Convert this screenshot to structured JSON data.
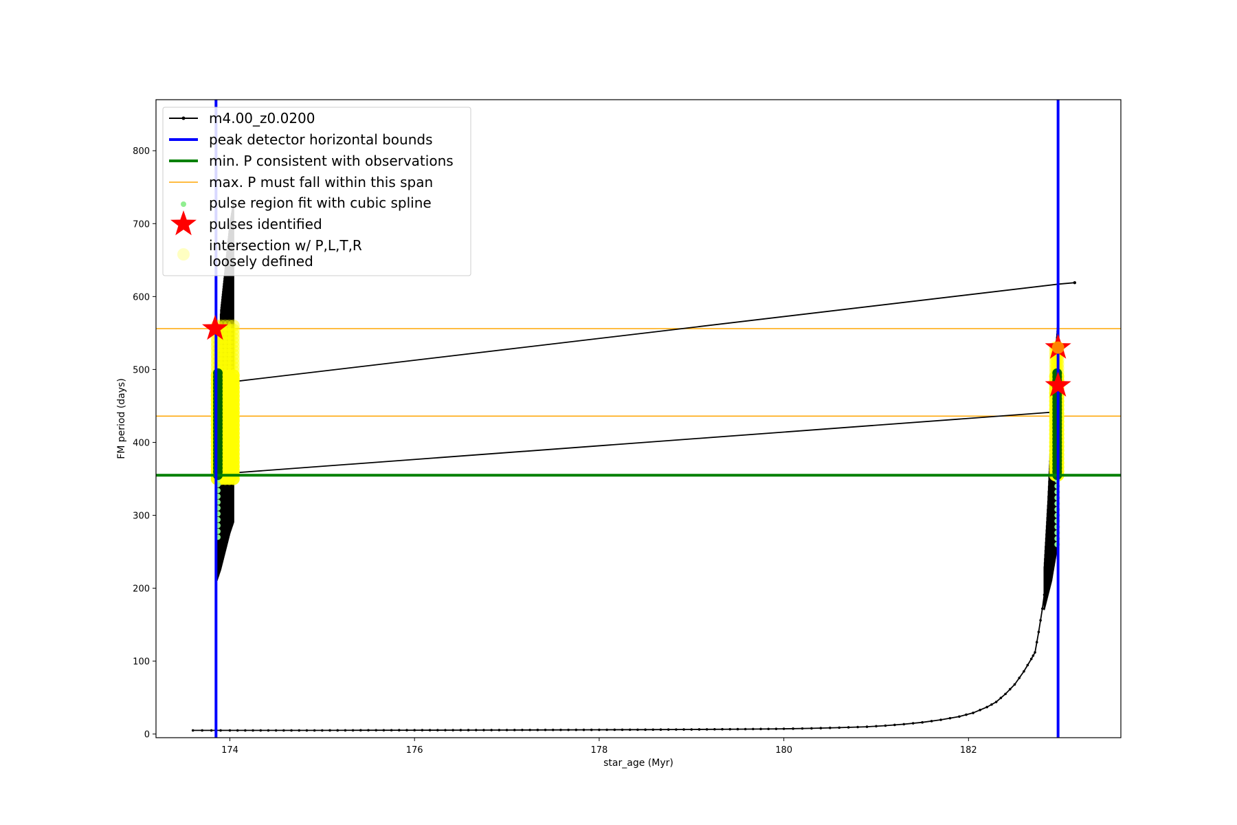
{
  "chart_data": {
    "type": "line",
    "title": "",
    "xlabel": "star_age (Myr)",
    "ylabel": "FM period (days)",
    "xlim": [
      173.2,
      183.65
    ],
    "ylim": [
      -5,
      870
    ],
    "xticks": [
      174,
      176,
      178,
      180,
      182
    ],
    "yticks": [
      0,
      100,
      200,
      300,
      400,
      500,
      600,
      700,
      800
    ],
    "grid": false,
    "legend_position": "upper-left",
    "colors": {
      "track": "#000000",
      "bounds": "#0000ff",
      "min_p": "#008000",
      "max_p": "#ffa500",
      "spline_dark": "#006400",
      "spline_light": "#90ee90",
      "pulse": "#ff0000",
      "intersection": "#ffff00"
    },
    "legend": [
      {
        "label": "m4.00_z0.0200",
        "kind": "line-marker",
        "color": "#000000"
      },
      {
        "label": "peak detector horizontal bounds",
        "kind": "thick-line",
        "color": "#0000ff"
      },
      {
        "label": "min. P consistent with observations",
        "kind": "thick-line",
        "color": "#008000"
      },
      {
        "label": "max. P must fall within this span",
        "kind": "thin-line",
        "color": "#ffa500"
      },
      {
        "label": "pulse region fit with cubic spline",
        "kind": "dot",
        "color": "#90ee90"
      },
      {
        "label": "pulses identified",
        "kind": "star",
        "color": "#ff0000"
      },
      {
        "label": "intersection w/ P,L,T,R\nloosely defined",
        "kind": "big-dot",
        "color": "#ffff99"
      }
    ],
    "vertical_bounds": [
      173.85,
      182.97
    ],
    "min_p_line": 355,
    "max_p_span": [
      436,
      556
    ],
    "track_series": {
      "name": "m4.00_z0.0200",
      "main_branch": [
        [
          173.6,
          5
        ],
        [
          174.0,
          5
        ],
        [
          174.5,
          5
        ],
        [
          175.0,
          5
        ],
        [
          175.5,
          5.2
        ],
        [
          176.0,
          5.3
        ],
        [
          176.5,
          5.4
        ],
        [
          177.0,
          5.5
        ],
        [
          177.5,
          5.7
        ],
        [
          178.0,
          5.8
        ],
        [
          178.5,
          6.0
        ],
        [
          179.0,
          6.3
        ],
        [
          179.5,
          6.7
        ],
        [
          180.0,
          7.2
        ],
        [
          180.3,
          7.8
        ],
        [
          180.6,
          8.8
        ],
        [
          180.9,
          10
        ],
        [
          181.1,
          11.5
        ],
        [
          181.3,
          13.5
        ],
        [
          181.5,
          16
        ],
        [
          181.7,
          19.5
        ],
        [
          181.9,
          24
        ],
        [
          182.05,
          29
        ],
        [
          182.2,
          37
        ],
        [
          182.3,
          44
        ],
        [
          182.4,
          55
        ],
        [
          182.5,
          68
        ],
        [
          182.6,
          86
        ],
        [
          182.68,
          103
        ],
        [
          182.72,
          112
        ],
        [
          182.76,
          140
        ],
        [
          182.8,
          172
        ],
        [
          182.84,
          210
        ],
        [
          182.88,
          260
        ],
        [
          182.9,
          300
        ]
      ],
      "early_spike": {
        "x_range": [
          173.86,
          174.04
        ],
        "lower_edge": [
          [
            173.86,
            210
          ],
          [
            173.9,
            225
          ],
          [
            173.95,
            250
          ],
          [
            174.0,
            275
          ],
          [
            174.04,
            290
          ]
        ],
        "upper_edge": [
          [
            173.86,
            440
          ],
          [
            173.9,
            580
          ],
          [
            173.95,
            640
          ],
          [
            174.0,
            700
          ],
          [
            174.04,
            730
          ]
        ]
      },
      "late_spike": {
        "x_range": [
          182.82,
          182.97
        ],
        "lower_edge": [
          [
            182.82,
            170
          ],
          [
            182.86,
            190
          ],
          [
            182.9,
            210
          ],
          [
            182.94,
            240
          ],
          [
            182.97,
            260
          ]
        ],
        "upper_edge": [
          [
            182.82,
            230
          ],
          [
            182.86,
            320
          ],
          [
            182.9,
            430
          ],
          [
            182.94,
            520
          ],
          [
            182.97,
            570
          ]
        ]
      },
      "connectors": [
        {
          "x": [
            174.02,
            182.97
          ],
          "y": [
            358,
            442
          ]
        },
        {
          "x": [
            174.02,
            182.97
          ],
          "y": [
            483,
            617
          ]
        },
        {
          "x": [
            182.97,
            183.15
          ],
          "y": [
            617,
            619
          ]
        }
      ]
    },
    "spline_points": {
      "early": {
        "x": 173.87,
        "dark_range": [
          355,
          495
        ],
        "light_range": [
          270,
          350
        ]
      },
      "late": {
        "x": 182.96,
        "dark_range": [
          355,
          495
        ],
        "light_range": [
          260,
          350
        ]
      }
    },
    "intersections": {
      "early": {
        "x_range": [
          173.86,
          174.04
        ],
        "y_range": [
          350,
          560
        ]
      },
      "late": {
        "x_range": [
          182.94,
          182.97
        ],
        "y_range": [
          355,
          530
        ]
      }
    },
    "pulses": [
      {
        "x": 173.84,
        "y": 556
      },
      {
        "x": 182.97,
        "y": 530
      },
      {
        "x": 182.97,
        "y": 478
      }
    ]
  }
}
